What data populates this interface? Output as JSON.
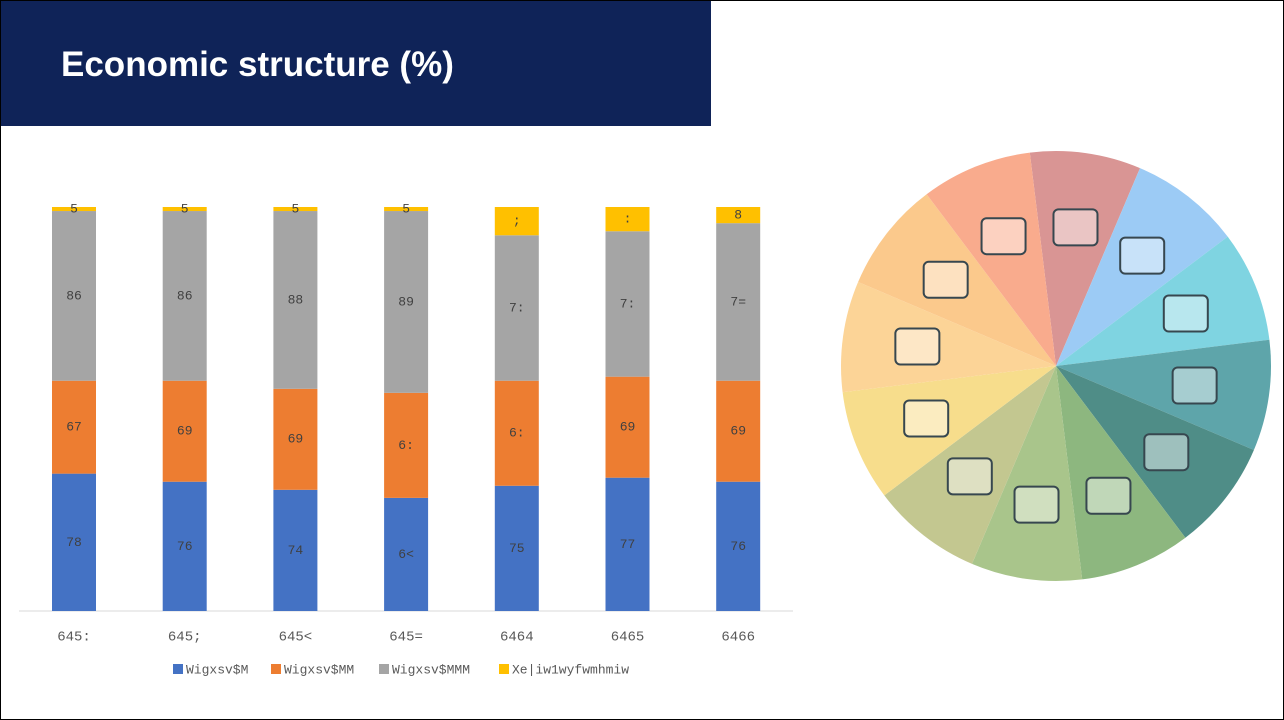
{
  "header": {
    "title": "Economic structure (%)"
  },
  "chart_data": {
    "type": "stacked-bar",
    "categories": [
      "645:",
      "645;",
      "645<",
      "645=",
      "6464",
      "6465",
      "6466"
    ],
    "ylim": [
      0,
      100
    ],
    "series": [
      {
        "name": "Wigxsv$M",
        "color": "#4472c4",
        "values": [
          34,
          32,
          30,
          28,
          31,
          33,
          32
        ],
        "value_labels": [
          "78",
          "76",
          "74",
          "6<",
          "75",
          "77",
          "76"
        ]
      },
      {
        "name": "Wigxsv$MM",
        "color": "#ed7d31",
        "values": [
          23,
          25,
          25,
          26,
          26,
          25,
          25
        ],
        "value_labels": [
          "67",
          "69",
          "69",
          "6:",
          "6:",
          "69",
          "69"
        ]
      },
      {
        "name": "Wigxsv$MMM",
        "color": "#a5a5a5",
        "values": [
          42,
          42,
          44,
          45,
          36,
          36,
          39
        ],
        "value_labels": [
          "86",
          "86",
          "88",
          "89",
          "7:",
          "7:",
          "7="
        ]
      },
      {
        "name": "Xe|iw1wyfwmhmiw",
        "color": "#ffc000",
        "values": [
          1,
          1,
          1,
          1,
          7,
          6,
          4
        ],
        "value_labels": [
          "5",
          "5",
          "5",
          "5",
          ";",
          ":",
          "8"
        ]
      }
    ]
  }
}
